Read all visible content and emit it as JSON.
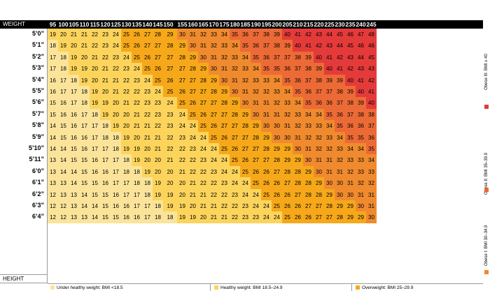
{
  "chart_data": {
    "type": "heatmap",
    "title": "",
    "xlabel": "WEIGHT",
    "ylabel": "HEIGHT",
    "x": [
      95,
      100,
      105,
      110,
      115,
      120,
      125,
      130,
      135,
      140,
      145,
      150,
      155,
      160,
      165,
      170,
      175,
      180,
      185,
      190,
      195,
      200,
      205,
      210,
      215,
      220,
      225,
      230,
      235,
      240,
      245
    ],
    "y": [
      "5’0”",
      "5’1”",
      "5’2”",
      "5’3”",
      "5’4”",
      "5’5”",
      "5’6”",
      "5’7”",
      "5’8”",
      "5’9”",
      "5’10”",
      "5’11”",
      "6’0”",
      "6’1”",
      "6’2”",
      "6’3”",
      "6’4”"
    ],
    "values": [
      [
        19,
        20,
        21,
        21,
        22,
        23,
        24,
        25,
        26,
        27,
        28,
        29,
        30,
        31,
        32,
        33,
        34,
        35,
        36,
        37,
        38,
        39,
        40,
        41,
        42,
        43,
        44,
        45,
        46,
        47,
        48
      ],
      [
        18,
        19,
        20,
        21,
        22,
        23,
        24,
        25,
        26,
        27,
        27,
        28,
        29,
        30,
        31,
        32,
        33,
        34,
        35,
        36,
        37,
        38,
        39,
        40,
        41,
        42,
        43,
        44,
        45,
        46,
        46
      ],
      [
        17,
        18,
        19,
        20,
        21,
        22,
        23,
        24,
        25,
        26,
        27,
        27,
        28,
        29,
        30,
        31,
        32,
        33,
        34,
        35,
        36,
        37,
        37,
        38,
        39,
        40,
        41,
        42,
        43,
        44,
        45
      ],
      [
        17,
        18,
        19,
        19,
        20,
        21,
        22,
        23,
        24,
        25,
        26,
        27,
        27,
        28,
        29,
        30,
        31,
        32,
        33,
        34,
        35,
        35,
        36,
        37,
        38,
        39,
        40,
        41,
        42,
        43,
        43
      ],
      [
        16,
        17,
        18,
        19,
        20,
        21,
        21,
        22,
        23,
        24,
        25,
        26,
        27,
        27,
        28,
        29,
        30,
        31,
        32,
        33,
        33,
        34,
        35,
        36,
        37,
        38,
        39,
        39,
        40,
        41,
        42
      ],
      [
        16,
        17,
        17,
        18,
        19,
        20,
        21,
        22,
        22,
        23,
        24,
        25,
        26,
        27,
        27,
        28,
        29,
        30,
        31,
        32,
        32,
        33,
        34,
        35,
        36,
        37,
        37,
        38,
        39,
        40,
        41
      ],
      [
        15,
        16,
        17,
        18,
        19,
        19,
        20,
        21,
        22,
        23,
        23,
        24,
        25,
        26,
        27,
        27,
        28,
        29,
        30,
        31,
        31,
        32,
        33,
        34,
        35,
        36,
        36,
        37,
        38,
        39,
        40
      ],
      [
        15,
        16,
        16,
        17,
        18,
        19,
        20,
        20,
        21,
        22,
        23,
        23,
        24,
        25,
        26,
        27,
        27,
        28,
        29,
        30,
        31,
        31,
        32,
        33,
        34,
        34,
        35,
        36,
        37,
        38,
        38
      ],
      [
        14,
        15,
        16,
        17,
        17,
        18,
        19,
        20,
        21,
        21,
        22,
        23,
        24,
        24,
        25,
        26,
        27,
        27,
        28,
        29,
        30,
        30,
        31,
        32,
        33,
        33,
        34,
        35,
        36,
        36,
        37
      ],
      [
        14,
        15,
        16,
        16,
        17,
        18,
        18,
        19,
        20,
        21,
        21,
        22,
        23,
        24,
        24,
        25,
        26,
        27,
        27,
        28,
        29,
        30,
        30,
        31,
        32,
        32,
        33,
        34,
        35,
        35,
        36
      ],
      [
        14,
        14,
        15,
        16,
        17,
        17,
        18,
        19,
        19,
        20,
        21,
        22,
        22,
        23,
        24,
        24,
        25,
        26,
        27,
        27,
        28,
        29,
        29,
        30,
        31,
        32,
        32,
        33,
        34,
        34,
        35
      ],
      [
        13,
        14,
        15,
        15,
        16,
        17,
        17,
        18,
        19,
        20,
        20,
        21,
        22,
        22,
        23,
        24,
        24,
        25,
        26,
        27,
        27,
        28,
        29,
        29,
        30,
        31,
        31,
        32,
        33,
        33,
        34
      ],
      [
        13,
        14,
        14,
        15,
        16,
        16,
        17,
        18,
        18,
        19,
        20,
        20,
        21,
        22,
        22,
        23,
        24,
        24,
        25,
        26,
        26,
        27,
        28,
        28,
        29,
        30,
        31,
        31,
        32,
        33,
        33
      ],
      [
        13,
        13,
        14,
        15,
        15,
        16,
        17,
        17,
        18,
        18,
        19,
        20,
        20,
        21,
        22,
        22,
        23,
        24,
        24,
        25,
        26,
        26,
        27,
        28,
        28,
        29,
        30,
        30,
        31,
        32,
        32
      ],
      [
        12,
        13,
        13,
        14,
        15,
        15,
        16,
        17,
        17,
        18,
        19,
        19,
        20,
        21,
        21,
        22,
        22,
        23,
        24,
        24,
        25,
        26,
        26,
        27,
        28,
        28,
        29,
        30,
        30,
        31,
        31
      ],
      [
        12,
        12,
        13,
        14,
        14,
        15,
        16,
        16,
        17,
        17,
        18,
        19,
        19,
        20,
        21,
        21,
        22,
        22,
        23,
        24,
        24,
        25,
        26,
        26,
        27,
        27,
        28,
        29,
        29,
        30,
        31
      ],
      [
        12,
        12,
        13,
        13,
        14,
        15,
        15,
        16,
        16,
        17,
        18,
        18,
        19,
        19,
        20,
        21,
        21,
        22,
        23,
        23,
        24,
        24,
        25,
        26,
        26,
        27,
        27,
        28,
        29,
        29,
        30
      ]
    ],
    "legend": [
      {
        "label": "Under healthy weight: BMI <18.5",
        "color": "#fbe49a",
        "placement": "bottom"
      },
      {
        "label": "Healthy weight: BMI 18.5–24.9",
        "color": "#fcd45c",
        "placement": "bottom"
      },
      {
        "label": "Overweight: BMI 25–29.9",
        "color": "#f6a81a",
        "placement": "bottom"
      },
      {
        "label": "Obese I: BMI 30–34.9",
        "color": "#f08a2e",
        "placement": "right"
      },
      {
        "label": "Obese II: BMI 35–39.9",
        "color": "#ec6a36",
        "placement": "right"
      },
      {
        "label": "Obese III: BMI ≥ 40",
        "color": "#e53a3a",
        "placement": "right"
      }
    ]
  }
}
